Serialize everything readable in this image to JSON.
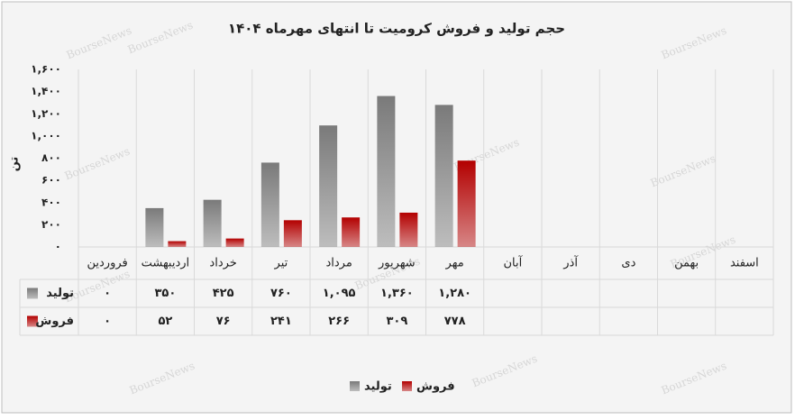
{
  "chart_data": {
    "type": "bar",
    "title": "حجم تولید و فروش کرومیت تا انتهای مهرماه ۱۴۰۴",
    "y_label": "تن",
    "watermark": "BourseNews",
    "categories": [
      "فروردین",
      "اردیبهشت",
      "خرداد",
      "تیر",
      "مرداد",
      "شهریور",
      "مهر",
      "آبان",
      "آذر",
      "دی",
      "بهمن",
      "اسفند"
    ],
    "series": [
      {
        "name": "تولید",
        "color": "#7a7a7a",
        "values": [
          0,
          350,
          425,
          760,
          1095,
          1360,
          1280,
          null,
          null,
          null,
          null,
          null
        ],
        "value_labels": [
          "۰",
          "۳۵۰",
          "۴۲۵",
          "۷۶۰",
          "۱,۰۹۵",
          "۱,۳۶۰",
          "۱,۲۸۰",
          null,
          null,
          null,
          null,
          null
        ]
      },
      {
        "name": "فروش",
        "color": "#b30000",
        "values": [
          0,
          52,
          76,
          241,
          266,
          309,
          778,
          null,
          null,
          null,
          null,
          null
        ],
        "value_labels": [
          "۰",
          "۵۲",
          "۷۶",
          "۲۴۱",
          "۲۶۶",
          "۳۰۹",
          "۷۷۸",
          null,
          null,
          null,
          null,
          null
        ]
      }
    ],
    "ylim": [
      0,
      1600
    ],
    "yticks": [
      {
        "value": 0,
        "label": "۰"
      },
      {
        "value": 200,
        "label": "۲۰۰"
      },
      {
        "value": 400,
        "label": "۴۰۰"
      },
      {
        "value": 600,
        "label": "۶۰۰"
      },
      {
        "value": 800,
        "label": "۸۰۰"
      },
      {
        "value": 1000,
        "label": "۱,۰۰۰"
      },
      {
        "value": 1200,
        "label": "۱,۲۰۰"
      },
      {
        "value": 1400,
        "label": "۱,۴۰۰"
      },
      {
        "value": 1600,
        "label": "۱,۶۰۰"
      }
    ],
    "grid": false,
    "data_table": true
  }
}
